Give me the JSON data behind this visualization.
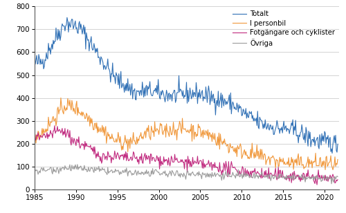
{
  "n_months": 440,
  "start_year": 1985,
  "start_month": 1,
  "legend_labels": [
    "Totalt",
    "I personbil",
    "Fotgängare och cyklister",
    "Övriga"
  ],
  "colors": [
    "#3070b5",
    "#f0973a",
    "#c0297e",
    "#9b9b9b"
  ],
  "ylim": [
    0,
    800
  ],
  "yticks": [
    0,
    100,
    200,
    300,
    400,
    500,
    600,
    700,
    800
  ],
  "xticks": [
    1985,
    1990,
    1995,
    2000,
    2005,
    2010,
    2015,
    2020
  ],
  "xlim": [
    1985.0,
    2021.75
  ],
  "grid_color": "#cccccc",
  "bg_color": "#ffffff",
  "totalt_base": [
    550,
    560,
    620,
    680,
    730,
    720,
    700,
    650,
    600,
    550,
    500,
    470,
    450,
    420,
    430,
    430,
    420,
    415,
    410,
    415,
    420,
    420,
    410,
    400,
    390,
    380,
    360,
    330,
    310,
    290,
    280,
    270,
    265,
    260,
    250,
    230,
    215,
    210,
    205,
    200
  ],
  "personbil_base": [
    238,
    250,
    290,
    330,
    370,
    360,
    340,
    310,
    280,
    255,
    220,
    210,
    205,
    210,
    240,
    250,
    255,
    260,
    265,
    265,
    260,
    255,
    245,
    230,
    210,
    190,
    175,
    165,
    155,
    145,
    135,
    125,
    120,
    115,
    115,
    115,
    115,
    115,
    112,
    110
  ],
  "fotgangare_base": [
    225,
    220,
    240,
    255,
    250,
    215,
    200,
    180,
    155,
    145,
    145,
    140,
    135,
    135,
    135,
    135,
    130,
    125,
    125,
    120,
    115,
    112,
    108,
    100,
    95,
    90,
    85,
    80,
    75,
    70,
    65,
    62,
    60,
    58,
    56,
    54,
    52,
    50,
    48,
    46
  ],
  "ovriga_base": [
    82,
    83,
    88,
    90,
    95,
    95,
    90,
    88,
    85,
    82,
    78,
    75,
    73,
    72,
    72,
    72,
    70,
    70,
    68,
    68,
    68,
    67,
    66,
    65,
    64,
    63,
    62,
    60,
    58,
    57,
    56,
    55,
    54,
    53,
    52,
    50,
    49,
    48,
    47,
    46
  ]
}
